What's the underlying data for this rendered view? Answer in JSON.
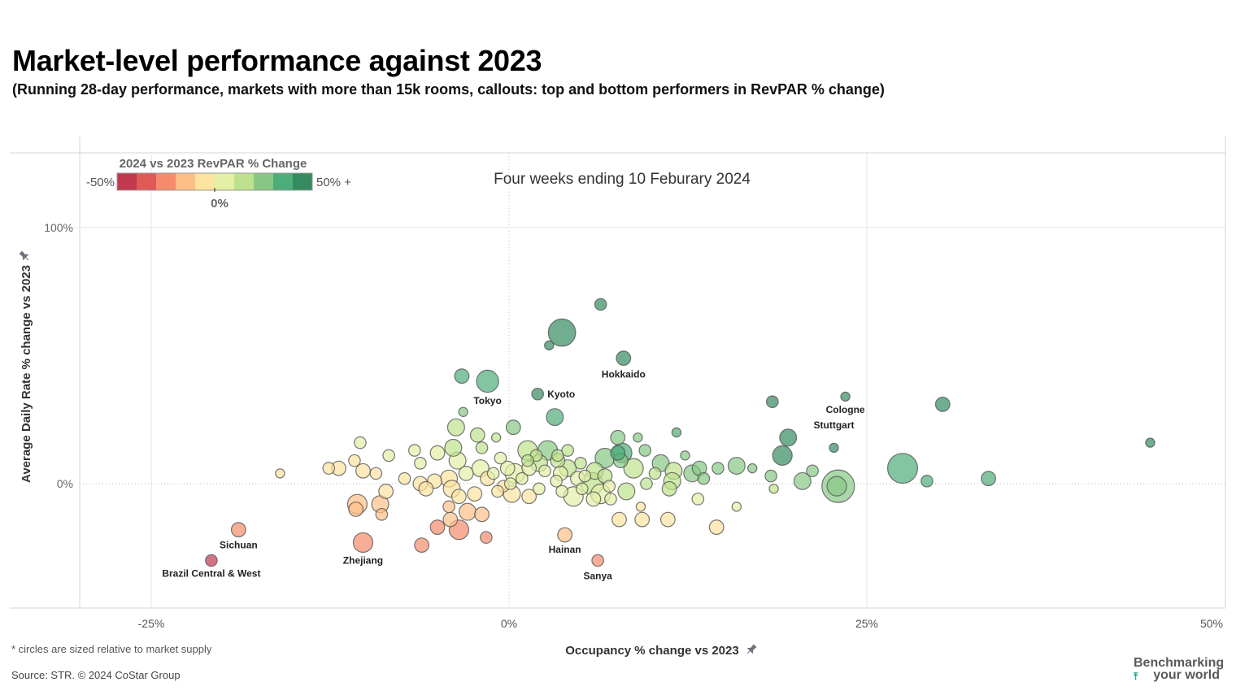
{
  "header": {
    "title": "Market-level performance against 2023",
    "subtitle": "(Running 28-day performance, markets with more than 15k rooms, callouts: top and bottom performers in RevPAR % change)"
  },
  "footer": {
    "note": "* circles are sized relative to market supply",
    "source": "Source: STR. © 2024 CoStar Group",
    "logo_line1": "Benchmarking",
    "logo_line2": "your world",
    "logo_icon": "arrow-up-icon"
  },
  "legend": {
    "title": "2024 vs 2023 RevPAR % Change",
    "min_label": "-50%",
    "max_label": "50% +",
    "mid_label": "0%",
    "colors": [
      "#c0394f",
      "#e05a55",
      "#f58b6a",
      "#fdbf86",
      "#fde3a0",
      "#e3f0a6",
      "#bde18c",
      "#87c785",
      "#4dad78",
      "#358a60"
    ]
  },
  "chart_data": {
    "type": "scatter",
    "title": "Four weeks ending 10 Feburary 2024",
    "xlabel": "Occupancy % change vs 2023",
    "ylabel": "Average Daily Rate % change vs 2023",
    "xlim": [
      -30,
      50
    ],
    "ylim": [
      -48,
      129
    ],
    "xticks": [
      "-25%",
      "0%",
      "25%",
      "50%"
    ],
    "xtick_values": [
      -25,
      0,
      25,
      50
    ],
    "yticks": [
      "0%",
      "100%"
    ],
    "ytick_values": [
      0,
      100
    ],
    "grid": true,
    "size_encodes": "market supply",
    "color_encodes": "RevPAR % change",
    "annotated": [
      {
        "name": "Hokkaido",
        "x": 8.0,
        "y": 49,
        "size": 3,
        "revpar": 60
      },
      {
        "name": "Tokyo",
        "x": -1.5,
        "y": 40,
        "size": 6,
        "revpar": 38
      },
      {
        "name": "Kyoto",
        "x": 2.0,
        "y": 35,
        "size": 2,
        "revpar": 40
      },
      {
        "name": "Cologne",
        "x": 23.5,
        "y": 34,
        "size": 1,
        "revpar": 62
      },
      {
        "name": "Stuttgart",
        "x": 22.7,
        "y": 14,
        "size": 1,
        "revpar": 40
      },
      {
        "name": "Sichuan",
        "x": -18.9,
        "y": -18,
        "size": 3,
        "revpar": -26
      },
      {
        "name": "Brazil Central & West",
        "x": -20.8,
        "y": -30,
        "size": 2,
        "revpar": -43
      },
      {
        "name": "Zhejiang",
        "x": -10.2,
        "y": -23,
        "size": 5,
        "revpar": -28
      },
      {
        "name": "Hainan",
        "x": 3.9,
        "y": -20,
        "size": 3,
        "revpar": -18
      },
      {
        "name": "Sanya",
        "x": 6.2,
        "y": -30,
        "size": 2,
        "revpar": -24
      }
    ],
    "points": [
      {
        "x": 6.4,
        "y": 70,
        "size": 2,
        "revpar": 62
      },
      {
        "x": 3.7,
        "y": 59,
        "size": 8,
        "revpar": 58
      },
      {
        "x": 2.8,
        "y": 54,
        "size": 1,
        "revpar": 55
      },
      {
        "x": -3.3,
        "y": 42,
        "size": 3,
        "revpar": 38
      },
      {
        "x": 3.2,
        "y": 26,
        "size": 4,
        "revpar": 30
      },
      {
        "x": -3.2,
        "y": 28,
        "size": 1,
        "revpar": 24
      },
      {
        "x": -3.7,
        "y": 22,
        "size": 4,
        "revpar": 18
      },
      {
        "x": -2.2,
        "y": 19,
        "size": 3,
        "revpar": 16
      },
      {
        "x": 0.3,
        "y": 22,
        "size": 3,
        "revpar": 22
      },
      {
        "x": -0.9,
        "y": 18,
        "size": 1,
        "revpar": 18
      },
      {
        "x": 7.6,
        "y": 18,
        "size": 3,
        "revpar": 24
      },
      {
        "x": 9.0,
        "y": 18,
        "size": 1,
        "revpar": 28
      },
      {
        "x": 11.7,
        "y": 20,
        "size": 1,
        "revpar": 30
      },
      {
        "x": 18.4,
        "y": 32,
        "size": 2,
        "revpar": 55
      },
      {
        "x": 30.3,
        "y": 31,
        "size": 3,
        "revpar": 60
      },
      {
        "x": 44.8,
        "y": 16,
        "size": 1,
        "revpar": 55
      },
      {
        "x": 19.5,
        "y": 18,
        "size": 4,
        "revpar": 50
      },
      {
        "x": 19.1,
        "y": 11,
        "size": 5,
        "revpar": 42
      },
      {
        "x": 27.5,
        "y": 6,
        "size": 9,
        "revpar": 38
      },
      {
        "x": 29.2,
        "y": 1,
        "size": 2,
        "revpar": 36
      },
      {
        "x": 33.5,
        "y": 2,
        "size": 3,
        "revpar": 38
      },
      {
        "x": 23.0,
        "y": -1,
        "size": 10,
        "revpar": 26
      },
      {
        "x": 22.9,
        "y": -1,
        "size": 5,
        "revpar": 28
      },
      {
        "x": 20.5,
        "y": 1,
        "size": 4,
        "revpar": 24
      },
      {
        "x": 21.2,
        "y": 5,
        "size": 2,
        "revpar": 24
      },
      {
        "x": 18.3,
        "y": 3,
        "size": 2,
        "revpar": 22
      },
      {
        "x": 18.5,
        "y": -2,
        "size": 1,
        "revpar": 16
      },
      {
        "x": 17.0,
        "y": 6,
        "size": 1,
        "revpar": 20
      },
      {
        "x": 15.9,
        "y": 7,
        "size": 4,
        "revpar": 22
      },
      {
        "x": 14.6,
        "y": 6,
        "size": 2,
        "revpar": 24
      },
      {
        "x": 13.3,
        "y": 6,
        "size": 3,
        "revpar": 26
      },
      {
        "x": 12.8,
        "y": 4,
        "size": 4,
        "revpar": 24
      },
      {
        "x": 13.6,
        "y": 2,
        "size": 2,
        "revpar": 22
      },
      {
        "x": 10.6,
        "y": 8,
        "size": 4,
        "revpar": 25
      },
      {
        "x": 9.5,
        "y": 13,
        "size": 2,
        "revpar": 26
      },
      {
        "x": 12.3,
        "y": 11,
        "size": 1,
        "revpar": 28
      },
      {
        "x": 11.5,
        "y": 5,
        "size": 4,
        "revpar": 18
      },
      {
        "x": 11.4,
        "y": 1,
        "size": 4,
        "revpar": 14
      },
      {
        "x": 11.2,
        "y": -2,
        "size": 3,
        "revpar": 12
      },
      {
        "x": 10.2,
        "y": 4,
        "size": 2,
        "revpar": 14
      },
      {
        "x": 9.6,
        "y": 0,
        "size": 2,
        "revpar": 12
      },
      {
        "x": 8.7,
        "y": 6,
        "size": 5,
        "revpar": 18
      },
      {
        "x": 8.2,
        "y": -3,
        "size": 4,
        "revpar": 10
      },
      {
        "x": 7.8,
        "y": 9,
        "size": 3,
        "revpar": 24
      },
      {
        "x": 7.9,
        "y": 12,
        "size": 5,
        "revpar": 30
      },
      {
        "x": 7.6,
        "y": 12,
        "size": 3,
        "revpar": 32
      },
      {
        "x": 6.7,
        "y": 10,
        "size": 5,
        "revpar": 24
      },
      {
        "x": 6.0,
        "y": 5,
        "size": 4,
        "revpar": 18
      },
      {
        "x": 5.8,
        "y": 0,
        "size": 6,
        "revpar": 10
      },
      {
        "x": 6.4,
        "y": -4,
        "size": 5,
        "revpar": 6
      },
      {
        "x": 4.5,
        "y": -5,
        "size": 5,
        "revpar": 2
      },
      {
        "x": 4.1,
        "y": 6,
        "size": 4,
        "revpar": 14
      },
      {
        "x": 3.4,
        "y": 9,
        "size": 3,
        "revpar": 18
      },
      {
        "x": 2.7,
        "y": 13,
        "size": 5,
        "revpar": 22
      },
      {
        "x": 2.1,
        "y": 8,
        "size": 4,
        "revpar": 14
      },
      {
        "x": 1.3,
        "y": 13,
        "size": 5,
        "revpar": 18
      },
      {
        "x": 0.4,
        "y": 4,
        "size": 5,
        "revpar": 6
      },
      {
        "x": 0.2,
        "y": -4,
        "size": 4,
        "revpar": -2
      },
      {
        "x": 1.4,
        "y": -5,
        "size": 3,
        "revpar": -2
      },
      {
        "x": 2.1,
        "y": -2,
        "size": 2,
        "revpar": 2
      },
      {
        "x": 3.3,
        "y": 1,
        "size": 2,
        "revpar": 6
      },
      {
        "x": 4.8,
        "y": 2,
        "size": 3,
        "revpar": 8
      },
      {
        "x": 3.7,
        "y": -3,
        "size": 2,
        "revpar": 2
      },
      {
        "x": 5.9,
        "y": -6,
        "size": 3,
        "revpar": 2
      },
      {
        "x": 7.1,
        "y": -6,
        "size": 2,
        "revpar": 2
      },
      {
        "x": 9.2,
        "y": -9,
        "size": 1,
        "revpar": -2
      },
      {
        "x": 9.3,
        "y": -14,
        "size": 3,
        "revpar": -6
      },
      {
        "x": 7.7,
        "y": -14,
        "size": 3,
        "revpar": -6
      },
      {
        "x": 11.1,
        "y": -14,
        "size": 3,
        "revpar": -4
      },
      {
        "x": 14.5,
        "y": -17,
        "size": 3,
        "revpar": -4
      },
      {
        "x": 13.2,
        "y": -6,
        "size": 2,
        "revpar": 4
      },
      {
        "x": 15.9,
        "y": -9,
        "size": 1,
        "revpar": 4
      },
      {
        "x": -1.5,
        "y": 2,
        "size": 3,
        "revpar": -1
      },
      {
        "x": -2.0,
        "y": 6,
        "size": 4,
        "revpar": 4
      },
      {
        "x": -3.0,
        "y": 4,
        "size": 3,
        "revpar": 0
      },
      {
        "x": -3.6,
        "y": 9,
        "size": 4,
        "revpar": 6
      },
      {
        "x": -3.9,
        "y": 14,
        "size": 4,
        "revpar": 12
      },
      {
        "x": -4.2,
        "y": 2,
        "size": 4,
        "revpar": -4
      },
      {
        "x": -4.0,
        "y": -2,
        "size": 4,
        "revpar": -6
      },
      {
        "x": -3.5,
        "y": -5,
        "size": 3,
        "revpar": -8
      },
      {
        "x": -5.2,
        "y": 1,
        "size": 3,
        "revpar": -4
      },
      {
        "x": -6.2,
        "y": 0,
        "size": 3,
        "revpar": -6
      },
      {
        "x": -7.3,
        "y": 2,
        "size": 2,
        "revpar": -4
      },
      {
        "x": -8.6,
        "y": -3,
        "size": 3,
        "revpar": -10
      },
      {
        "x": -9.0,
        "y": -8,
        "size": 4,
        "revpar": -16
      },
      {
        "x": -10.6,
        "y": -8,
        "size": 5,
        "revpar": -18
      },
      {
        "x": -10.7,
        "y": -10,
        "size": 3,
        "revpar": -20
      },
      {
        "x": -8.9,
        "y": -12,
        "size": 2,
        "revpar": -20
      },
      {
        "x": -9.3,
        "y": 4,
        "size": 2,
        "revpar": -2
      },
      {
        "x": -10.8,
        "y": 9,
        "size": 2,
        "revpar": -1
      },
      {
        "x": -10.2,
        "y": 5,
        "size": 3,
        "revpar": -4
      },
      {
        "x": -10.4,
        "y": 16,
        "size": 2,
        "revpar": 6
      },
      {
        "x": -11.9,
        "y": 6,
        "size": 3,
        "revpar": -6
      },
      {
        "x": -12.6,
        "y": 6,
        "size": 2,
        "revpar": -7
      },
      {
        "x": -16.0,
        "y": 4,
        "size": 1,
        "revpar": -10
      },
      {
        "x": -8.4,
        "y": 11,
        "size": 2,
        "revpar": 2
      },
      {
        "x": -6.6,
        "y": 13,
        "size": 2,
        "revpar": 6
      },
      {
        "x": -5.0,
        "y": 12,
        "size": 3,
        "revpar": 6
      },
      {
        "x": -6.2,
        "y": 8,
        "size": 2,
        "revpar": 1
      },
      {
        "x": -5.8,
        "y": -2,
        "size": 3,
        "revpar": -8
      },
      {
        "x": -4.2,
        "y": -9,
        "size": 2,
        "revpar": -12
      },
      {
        "x": -4.1,
        "y": -14,
        "size": 3,
        "revpar": -16
      },
      {
        "x": -6.1,
        "y": -24,
        "size": 3,
        "revpar": -28
      },
      {
        "x": -5.0,
        "y": -17,
        "size": 3,
        "revpar": -24
      },
      {
        "x": -3.5,
        "y": -18,
        "size": 5,
        "revpar": -26
      },
      {
        "x": -2.9,
        "y": -11,
        "size": 4,
        "revpar": -16
      },
      {
        "x": -1.9,
        "y": -12,
        "size": 3,
        "revpar": -14
      },
      {
        "x": -2.4,
        "y": -4,
        "size": 3,
        "revpar": -8
      },
      {
        "x": -1.6,
        "y": -21,
        "size": 2,
        "revpar": -22
      },
      {
        "x": -1.1,
        "y": 4,
        "size": 2,
        "revpar": 2
      },
      {
        "x": -0.6,
        "y": 10,
        "size": 2,
        "revpar": 8
      },
      {
        "x": -1.9,
        "y": 14,
        "size": 2,
        "revpar": 10
      },
      {
        "x": -0.1,
        "y": 6,
        "size": 3,
        "revpar": 6
      },
      {
        "x": 1.4,
        "y": 6,
        "size": 3,
        "revpar": 8
      },
      {
        "x": 0.9,
        "y": 2,
        "size": 2,
        "revpar": 2
      },
      {
        "x": -0.4,
        "y": -1,
        "size": 2,
        "revpar": -2
      },
      {
        "x": -0.8,
        "y": -3,
        "size": 2,
        "revpar": -4
      },
      {
        "x": 2.5,
        "y": 5,
        "size": 2,
        "revpar": 8
      },
      {
        "x": 3.6,
        "y": 4,
        "size": 3,
        "revpar": 8
      },
      {
        "x": 5.0,
        "y": 8,
        "size": 2,
        "revpar": 12
      },
      {
        "x": 5.3,
        "y": 3,
        "size": 2,
        "revpar": 8
      },
      {
        "x": 6.7,
        "y": 3,
        "size": 3,
        "revpar": 10
      },
      {
        "x": 7.0,
        "y": -1,
        "size": 2,
        "revpar": 6
      },
      {
        "x": 5.1,
        "y": -2,
        "size": 2,
        "revpar": 2
      },
      {
        "x": 3.4,
        "y": 11,
        "size": 2,
        "revpar": 14
      },
      {
        "x": 1.9,
        "y": 11,
        "size": 2,
        "revpar": 12
      },
      {
        "x": 4.1,
        "y": 13,
        "size": 2,
        "revpar": 16
      },
      {
        "x": 1.3,
        "y": 9,
        "size": 2,
        "revpar": 10
      },
      {
        "x": 0.1,
        "y": 0,
        "size": 2,
        "revpar": 0
      }
    ]
  }
}
